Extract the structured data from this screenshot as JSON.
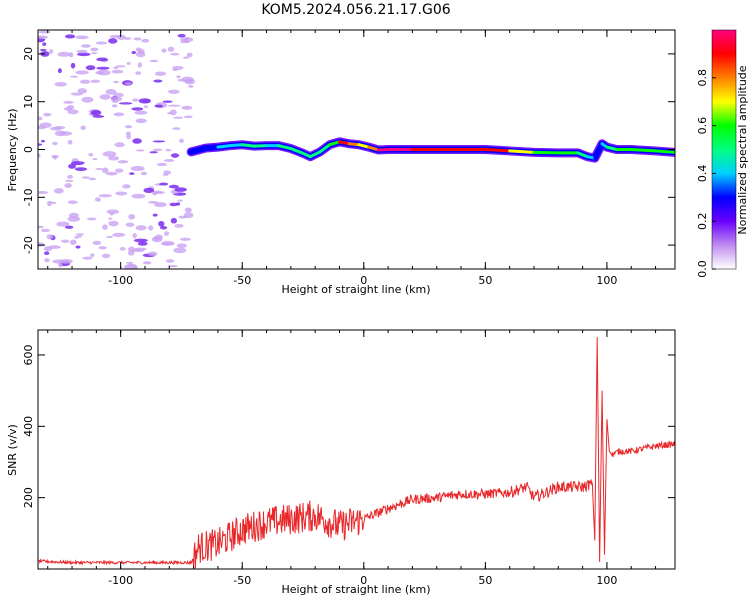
{
  "title": "KOM5.2024.056.21.17.G06",
  "spectrogram": {
    "xlabel": "Height of straight line (km)",
    "ylabel": "Frequency (Hz)",
    "xlim": [
      -134,
      128
    ],
    "ylim": [
      -25,
      25
    ],
    "xticks": [
      -100,
      -50,
      0,
      50,
      100
    ],
    "yticks": [
      20,
      10,
      0,
      -10,
      -20
    ],
    "noise_region_x": [
      -134,
      -71
    ],
    "signal_track": {
      "x": [
        -71,
        -65,
        -60,
        -55,
        -50,
        -45,
        -40,
        -35,
        -30,
        -25,
        -22,
        -18,
        -14,
        -10,
        -6,
        -2,
        2,
        6,
        10,
        20,
        30,
        40,
        50,
        60,
        70,
        80,
        88,
        92,
        95,
        98,
        100,
        104,
        110,
        120,
        128
      ],
      "y": [
        -0.5,
        0.3,
        0.5,
        0.8,
        1.0,
        0.7,
        0.8,
        0.8,
        0.2,
        -0.8,
        -1.5,
        -0.5,
        1.0,
        1.6,
        1.2,
        1.0,
        0.5,
        -0.1,
        0.0,
        0.0,
        0.0,
        0.0,
        0.0,
        -0.3,
        -0.6,
        -0.7,
        -0.7,
        -1.5,
        -1.8,
        1.2,
        0.5,
        0.0,
        0.0,
        -0.3,
        -0.6
      ],
      "amplitude": [
        0.25,
        0.3,
        0.35,
        0.4,
        0.45,
        0.45,
        0.4,
        0.5,
        0.5,
        0.45,
        0.45,
        0.5,
        0.6,
        0.85,
        0.8,
        0.7,
        0.75,
        0.95,
        0.95,
        0.9,
        0.85,
        0.85,
        0.85,
        0.7,
        0.55,
        0.55,
        0.5,
        0.4,
        0.3,
        0.35,
        0.5,
        0.6,
        0.6,
        0.55,
        0.5
      ]
    }
  },
  "colorbar": {
    "label": "Normalized spectral amplitude",
    "range": [
      0.0,
      1.0
    ],
    "ticks": [
      0.0,
      0.2,
      0.4,
      0.6,
      0.8
    ],
    "tick_labels": [
      "0.0",
      "0.2",
      "0.4",
      "0.6",
      "0.8"
    ],
    "colors": [
      "#ffffff",
      "#c08cf0",
      "#6a00ff",
      "#0000ff",
      "#00d0ff",
      "#00ff80",
      "#00ff00",
      "#ffff00",
      "#ff8000",
      "#ff0000",
      "#ff0080"
    ]
  },
  "chart_data": {
    "type": "line",
    "xlabel": "Height of straight line (km)",
    "ylabel": "SNR (v/v)",
    "xlim": [
      -134,
      128
    ],
    "ylim": [
      0,
      670
    ],
    "xticks": [
      -100,
      -50,
      0,
      50,
      100
    ],
    "yticks": [
      200,
      400,
      600
    ],
    "series": [
      {
        "color": "#e8282a",
        "x": [
          -134,
          -120,
          -100,
          -80,
          -71,
          -68,
          -60,
          -50,
          -40,
          -30,
          -20,
          -10,
          0,
          10,
          20,
          30,
          40,
          50,
          60,
          67,
          70,
          80,
          90,
          94,
          95,
          96,
          97,
          98,
          99,
          100,
          101,
          102,
          105,
          110,
          120,
          128
        ],
        "y": [
          22,
          18,
          18,
          18,
          18,
          60,
          70,
          110,
          130,
          140,
          150,
          120,
          140,
          170,
          195,
          200,
          210,
          210,
          215,
          230,
          200,
          230,
          230,
          240,
          80,
          650,
          20,
          500,
          40,
          420,
          330,
          320,
          330,
          330,
          345,
          350
        ]
      }
    ]
  }
}
